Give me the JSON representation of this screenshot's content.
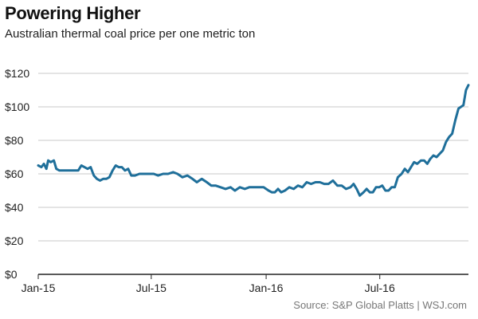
{
  "header": {
    "title": "Powering Higher",
    "subtitle": "Australian thermal coal price per one metric ton"
  },
  "footer": {
    "source": "Source: S&P Global Platts  |  WSJ.com"
  },
  "colors": {
    "line": "#1f6f9a",
    "grid": "#c9c9c9",
    "axis": "#222222"
  },
  "chart_data": {
    "type": "line",
    "title": "Powering Higher",
    "subtitle": "Australian thermal coal price per one metric ton",
    "xlabel": "",
    "ylabel": "",
    "ylim": [
      0,
      120
    ],
    "y_ticks": [
      0,
      20,
      40,
      60,
      80,
      100,
      120
    ],
    "y_tick_labels": [
      "$0",
      "$20",
      "$40",
      "$60",
      "$80",
      "$100",
      "$120"
    ],
    "x_ticks": [
      "2015-01-01",
      "2015-07-01",
      "2016-01-01",
      "2016-07-01"
    ],
    "x_tick_labels": [
      "Jan-15",
      "Jul-15",
      "Jan-16",
      "Jul-16"
    ],
    "xlim": [
      "2015-01-01",
      "2016-11-20"
    ],
    "grid": true,
    "legend": "none",
    "series": [
      {
        "x": [
          "2015-01-01",
          "2015-01-06",
          "2015-01-10",
          "2015-01-14",
          "2015-01-17",
          "2015-01-21",
          "2015-01-26",
          "2015-01-30",
          "2015-02-04",
          "2015-02-09",
          "2015-02-14",
          "2015-02-19",
          "2015-02-24",
          "2015-03-01",
          "2015-03-06",
          "2015-03-11",
          "2015-03-16",
          "2015-03-21",
          "2015-03-26",
          "2015-03-31",
          "2015-04-05",
          "2015-04-10",
          "2015-04-15",
          "2015-04-20",
          "2015-04-25",
          "2015-04-30",
          "2015-05-05",
          "2015-05-10",
          "2015-05-15",
          "2015-05-20",
          "2015-05-25",
          "2015-05-30",
          "2015-06-05",
          "2015-06-12",
          "2015-06-20",
          "2015-06-28",
          "2015-07-05",
          "2015-07-12",
          "2015-07-20",
          "2015-07-28",
          "2015-08-05",
          "2015-08-12",
          "2015-08-20",
          "2015-08-28",
          "2015-09-05",
          "2015-09-12",
          "2015-09-20",
          "2015-09-28",
          "2015-10-05",
          "2015-10-12",
          "2015-10-20",
          "2015-10-28",
          "2015-11-05",
          "2015-11-12",
          "2015-11-20",
          "2015-11-28",
          "2015-12-05",
          "2015-12-12",
          "2015-12-20",
          "2015-12-28",
          "2016-01-05",
          "2016-01-10",
          "2016-01-15",
          "2016-01-20",
          "2016-01-25",
          "2016-01-31",
          "2016-02-07",
          "2016-02-14",
          "2016-02-21",
          "2016-02-28",
          "2016-03-06",
          "2016-03-13",
          "2016-03-20",
          "2016-03-27",
          "2016-04-03",
          "2016-04-10",
          "2016-04-17",
          "2016-04-24",
          "2016-05-01",
          "2016-05-08",
          "2016-05-15",
          "2016-05-20",
          "2016-05-25",
          "2016-05-30",
          "2016-06-05",
          "2016-06-10",
          "2016-06-15",
          "2016-06-20",
          "2016-06-25",
          "2016-06-30",
          "2016-07-05",
          "2016-07-10",
          "2016-07-15",
          "2016-07-20",
          "2016-07-25",
          "2016-07-30",
          "2016-08-05",
          "2016-08-10",
          "2016-08-15",
          "2016-08-20",
          "2016-08-25",
          "2016-08-30",
          "2016-09-05",
          "2016-09-10",
          "2016-09-15",
          "2016-09-20",
          "2016-09-25",
          "2016-09-30",
          "2016-10-05",
          "2016-10-10",
          "2016-10-15",
          "2016-10-20",
          "2016-10-25",
          "2016-10-30",
          "2016-11-04",
          "2016-11-08",
          "2016-11-12",
          "2016-11-16",
          "2016-11-20"
        ],
        "values": [
          65,
          64,
          66,
          63,
          68,
          67,
          68,
          63,
          62,
          62,
          62,
          62,
          62,
          62,
          62,
          65,
          64,
          63,
          64,
          59,
          57,
          56,
          57,
          57,
          58,
          62,
          65,
          64,
          64,
          62,
          63,
          59,
          59,
          60,
          60,
          60,
          60,
          59,
          60,
          60,
          61,
          60,
          58,
          59,
          57,
          55,
          57,
          55,
          53,
          53,
          52,
          51,
          52,
          50,
          52,
          51,
          52,
          52,
          52,
          52,
          50,
          49,
          49,
          51,
          49,
          50,
          52,
          51,
          53,
          52,
          55,
          54,
          55,
          55,
          54,
          54,
          56,
          53,
          53,
          51,
          52,
          54,
          51,
          47,
          49,
          51,
          49,
          49,
          52,
          52,
          53,
          50,
          50,
          52,
          52,
          58,
          60,
          63,
          61,
          64,
          67,
          66,
          68,
          68,
          66,
          69,
          71,
          70,
          72,
          74,
          79,
          82,
          84,
          92,
          99,
          100,
          101,
          110,
          113
        ]
      }
    ]
  }
}
